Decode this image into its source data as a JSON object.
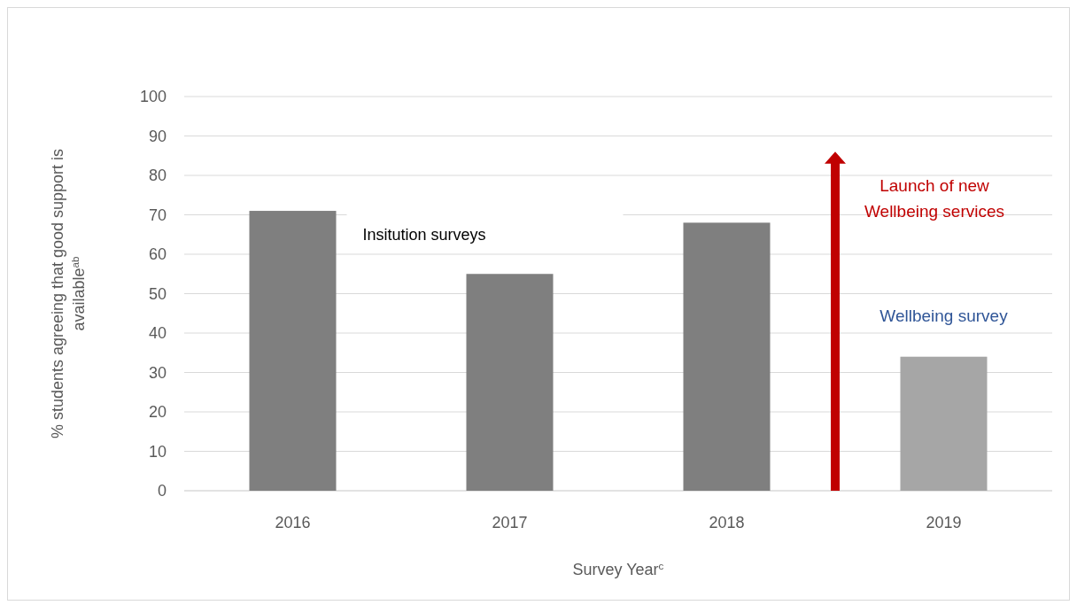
{
  "chart_data": {
    "type": "bar",
    "categories": [
      "2016",
      "2017",
      "2018",
      "2019"
    ],
    "values": [
      71,
      55,
      68,
      34
    ],
    "colors": [
      "#7f7f7f",
      "#7f7f7f",
      "#7f7f7f",
      "#a6a6a6"
    ],
    "ylim": [
      0,
      100
    ],
    "yticks": [
      0,
      10,
      20,
      30,
      40,
      50,
      60,
      70,
      80,
      90,
      100
    ],
    "grid": "y",
    "xlabel": "Survey Year$^{c}$",
    "ylabel": "% students agreeing that good support is available$^{ab}$",
    "annotations": [
      "Insitution surveys",
      "Launch of new Wellbeing services",
      "Wellbeing survey"
    ]
  }
}
